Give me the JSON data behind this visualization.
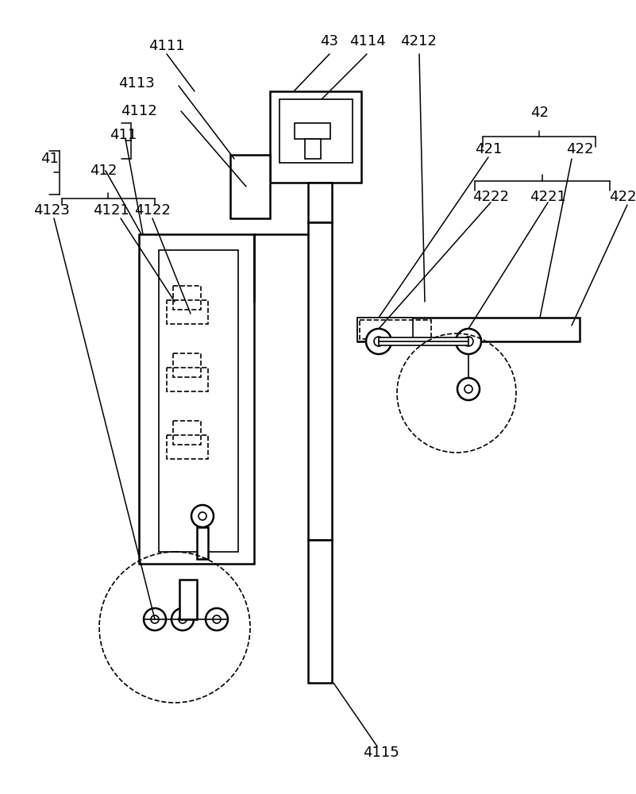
{
  "bg_color": "#ffffff",
  "line_color": "#000000",
  "lw_main": 1.8,
  "lw_thin": 1.2,
  "lw_annot": 1.1,
  "fig_w": 8.01,
  "fig_h": 10.0,
  "dpi": 100
}
